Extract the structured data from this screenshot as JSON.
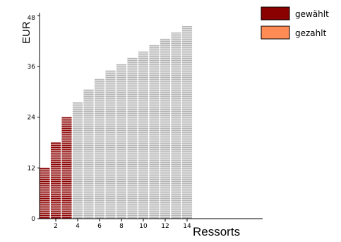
{
  "chart_data": {
    "type": "bar",
    "xlabel": "Ressorts",
    "ylabel": "EUR",
    "ylim": [
      0,
      48
    ],
    "xlim": [
      0.5,
      14.5
    ],
    "yticks": [
      "0",
      "12",
      "24",
      "36",
      "48"
    ],
    "xticks": [
      "2",
      "4",
      "6",
      "8",
      "10",
      "12",
      "14"
    ],
    "x": [
      1,
      2,
      3,
      4,
      5,
      6,
      7,
      8,
      9,
      10,
      11,
      12,
      13,
      14
    ],
    "values": [
      12,
      18,
      24,
      27.5,
      30.5,
      33,
      35,
      36.5,
      38,
      39.5,
      41,
      42.5,
      44,
      45.5
    ],
    "selected_count": 3,
    "legend": [
      {
        "label": "gewählt",
        "color": "#8b0000"
      },
      {
        "label": "gezahlt",
        "color": "#ff8c55"
      }
    ],
    "colors": {
      "selected": "#8b0000",
      "unselected": "#b4b4b4",
      "segment_line": "#ffffff"
    },
    "legend_position": "top-right",
    "grid": false
  }
}
